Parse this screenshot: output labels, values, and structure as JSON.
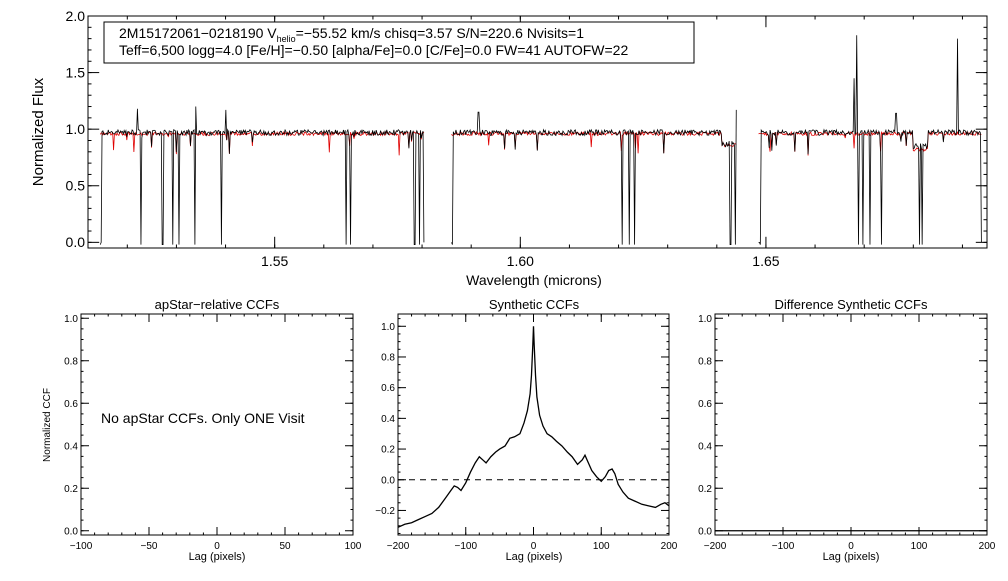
{
  "chart_data": [
    {
      "id": "spectrum",
      "type": "line",
      "annotation": {
        "line1_prefix": "2M15172061−0218190  V",
        "line1_sub": "helio",
        "line1_suffix": "=−55.52 km/s  chisq=3.57  S/N=220.6  Nvisits=1",
        "line2": "Teff=6,500 logg=4.0 [Fe/H]=−0.50 [alpha/Fe]=0.0 [C/Fe]=0.0 FW=41 AUTOFW=22"
      },
      "xlabel": "Wavelength (microns)",
      "ylabel": "Normalized Flux",
      "xlim": [
        1.512,
        1.695
      ],
      "ylim": [
        -0.05,
        2.0
      ],
      "xticks": [
        1.55,
        1.6,
        1.65
      ],
      "xtick_labels": [
        "1.55",
        "1.60",
        "1.65"
      ],
      "yticks": [
        0.0,
        0.5,
        1.0,
        1.5,
        2.0
      ],
      "ytick_labels": [
        "0.0",
        "0.5",
        "1.0",
        "1.5",
        "2.0"
      ],
      "chips": [
        [
          1.5145,
          1.5805
        ],
        [
          1.586,
          1.644
        ],
        [
          1.6485,
          1.694
        ]
      ],
      "deep_drops": [
        1.5145,
        1.5228,
        1.5272,
        1.5292,
        1.5305,
        1.5338,
        1.5392,
        1.5645,
        1.5655,
        1.5785,
        1.5795,
        1.5862,
        1.6208,
        1.6222,
        1.6232,
        1.6428,
        1.6438,
        1.6488,
        1.6688,
        1.6698,
        1.6712,
        1.6735,
        1.6812,
        1.6818
      ],
      "spikes": [
        [
          1.522,
          1.18
        ],
        [
          1.534,
          1.2
        ],
        [
          1.54,
          1.17
        ],
        [
          1.5915,
          1.15
        ],
        [
          1.644,
          1.17
        ],
        [
          1.6685,
          1.83
        ],
        [
          1.689,
          1.8
        ],
        [
          1.6765,
          1.14
        ],
        [
          1.668,
          1.45
        ]
      ],
      "series": [
        {
          "name": "observed",
          "color": "#000000"
        },
        {
          "name": "model",
          "color": "#e00000"
        }
      ]
    },
    {
      "id": "apstar",
      "type": "line",
      "title": "apStar−relative CCFs",
      "xlabel": "Lag (pixels)",
      "ylabel": "Normalized CCF",
      "xlim": [
        -100,
        100
      ],
      "ylim": [
        -0.02,
        1.02
      ],
      "xticks": [
        -100,
        -50,
        0,
        50,
        100
      ],
      "xtick_labels": [
        "−100",
        "−50",
        "0",
        "50",
        "100"
      ],
      "yticks": [
        0.0,
        0.2,
        0.4,
        0.6,
        0.8,
        1.0
      ],
      "ytick_labels": [
        "0.0",
        "0.2",
        "0.4",
        "0.6",
        "0.8",
        "1.0"
      ],
      "message": "No apStar CCFs.  Only ONE Visit"
    },
    {
      "id": "synthetic",
      "type": "line",
      "title": "Synthetic CCFs",
      "xlabel": "Lag (pixels)",
      "xlim": [
        -200,
        200
      ],
      "ylim": [
        -0.36,
        1.08
      ],
      "xticks": [
        -200,
        -100,
        0,
        100,
        200
      ],
      "xtick_labels": [
        "−200",
        "−100",
        "0",
        "100",
        "200"
      ],
      "yticks": [
        -0.2,
        0.0,
        0.2,
        0.4,
        0.6,
        0.8,
        1.0
      ],
      "ytick_labels": [
        "−0.2",
        "0.0",
        "0.2",
        "0.4",
        "0.6",
        "0.8",
        "1.0"
      ],
      "baseline": 0.0,
      "points": [
        [
          -200,
          -0.31
        ],
        [
          -190,
          -0.29
        ],
        [
          -180,
          -0.28
        ],
        [
          -170,
          -0.26
        ],
        [
          -160,
          -0.24
        ],
        [
          -150,
          -0.22
        ],
        [
          -140,
          -0.18
        ],
        [
          -130,
          -0.12
        ],
        [
          -122,
          -0.07
        ],
        [
          -117,
          -0.04
        ],
        [
          -112,
          -0.05
        ],
        [
          -107,
          -0.07
        ],
        [
          -100,
          -0.02
        ],
        [
          -93,
          0.05
        ],
        [
          -86,
          0.11
        ],
        [
          -80,
          0.15
        ],
        [
          -75,
          0.13
        ],
        [
          -70,
          0.11
        ],
        [
          -63,
          0.15
        ],
        [
          -56,
          0.18
        ],
        [
          -50,
          0.2
        ],
        [
          -42,
          0.22
        ],
        [
          -35,
          0.27
        ],
        [
          -28,
          0.28
        ],
        [
          -20,
          0.3
        ],
        [
          -14,
          0.37
        ],
        [
          -9,
          0.45
        ],
        [
          -5,
          0.56
        ],
        [
          -3,
          0.68
        ],
        [
          -1,
          0.88
        ],
        [
          0,
          1.0
        ],
        [
          1,
          0.88
        ],
        [
          3,
          0.68
        ],
        [
          5,
          0.54
        ],
        [
          9,
          0.42
        ],
        [
          14,
          0.35
        ],
        [
          20,
          0.3
        ],
        [
          27,
          0.28
        ],
        [
          34,
          0.25
        ],
        [
          42,
          0.22
        ],
        [
          50,
          0.18
        ],
        [
          57,
          0.15
        ],
        [
          65,
          0.1
        ],
        [
          72,
          0.13
        ],
        [
          76,
          0.16
        ],
        [
          80,
          0.12
        ],
        [
          86,
          0.06
        ],
        [
          93,
          0.02
        ],
        [
          100,
          -0.01
        ],
        [
          106,
          0.02
        ],
        [
          111,
          0.06
        ],
        [
          116,
          0.07
        ],
        [
          120,
          0.04
        ],
        [
          125,
          -0.03
        ],
        [
          132,
          -0.08
        ],
        [
          140,
          -0.12
        ],
        [
          150,
          -0.14
        ],
        [
          160,
          -0.16
        ],
        [
          170,
          -0.17
        ],
        [
          180,
          -0.18
        ],
        [
          188,
          -0.16
        ],
        [
          194,
          -0.15
        ],
        [
          200,
          -0.17
        ]
      ]
    },
    {
      "id": "difference",
      "type": "line",
      "title": "Difference Synthetic CCFs",
      "xlabel": "Lag (pixels)",
      "xlim": [
        -200,
        200
      ],
      "ylim": [
        -0.02,
        1.02
      ],
      "xticks": [
        -200,
        -100,
        0,
        100,
        200
      ],
      "xtick_labels": [
        "−200",
        "−100",
        "0",
        "100",
        "200"
      ],
      "yticks": [
        0.0,
        0.2,
        0.4,
        0.6,
        0.8,
        1.0
      ],
      "ytick_labels": [
        "0.0",
        "0.2",
        "0.4",
        "0.6",
        "0.8",
        "1.0"
      ],
      "points": [
        [
          -200,
          0.0
        ],
        [
          200,
          0.0
        ]
      ]
    }
  ]
}
